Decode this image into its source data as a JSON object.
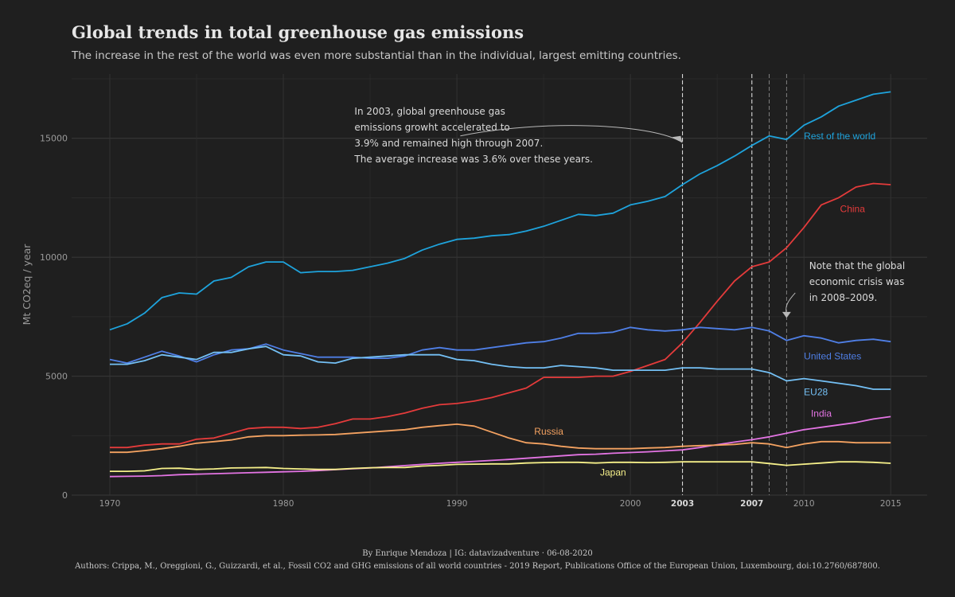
{
  "title": "Global trends in total greenhouse gas emissions",
  "subtitle": "The increase in the rest of the world was even more substantial than in the individual, largest emitting countries.",
  "caption": {
    "byline": "By Enrique Mendoza | IG: datavizadventure  ·  06-08-2020",
    "authors": "Authors: Crippa, M., Oreggioni, G., Guizzardi, et al., Fossil CO2 and GHG emissions of all world countries - 2019 Report, Publications Office of the European Union, Luxembourg, doi:10.2760/687800."
  },
  "chart_data": {
    "type": "line",
    "ylabel": "Mt CO2eq / year",
    "xlabel": "",
    "xlim": [
      1967.5,
      1017.5
    ],
    "ylim": [
      0,
      17500
    ],
    "x_ticks": [
      1970,
      1980,
      1990,
      2000,
      2003,
      2007,
      2010,
      2015
    ],
    "x_ticks_bold": [
      2003,
      2007
    ],
    "y_ticks": [
      0,
      5000,
      10000,
      15000
    ],
    "y_tick_labels": [
      "0",
      "5000",
      "10000",
      "15000"
    ],
    "grid": true,
    "vlines": [
      2003,
      2007,
      2008,
      2009
    ],
    "x": [
      1970,
      1971,
      1972,
      1973,
      1974,
      1975,
      1976,
      1977,
      1978,
      1979,
      1980,
      1981,
      1982,
      1983,
      1984,
      1985,
      1986,
      1987,
      1988,
      1989,
      1990,
      1991,
      1992,
      1993,
      1994,
      1995,
      1996,
      1997,
      1998,
      1999,
      2000,
      2001,
      2002,
      2003,
      2004,
      2005,
      2006,
      2007,
      2008,
      2009,
      2010,
      2011,
      2012,
      2013,
      2014,
      2015
    ],
    "series": [
      {
        "name": "Rest of the world",
        "color": "#1ea3dc",
        "label_year": 2010,
        "label_value": 14950,
        "label_anchor": "start",
        "values": [
          6950,
          7200,
          7650,
          8300,
          8500,
          8450,
          9000,
          9150,
          9600,
          9800,
          9800,
          9350,
          9400,
          9400,
          9450,
          9600,
          9750,
          9950,
          10300,
          10550,
          10750,
          10800,
          10900,
          10950,
          11100,
          11300,
          11550,
          11800,
          11750,
          11850,
          12200,
          12350,
          12550,
          13050,
          13500,
          13850,
          14250,
          14700,
          15100,
          14950,
          15550,
          15900,
          16350,
          16600,
          16850,
          16950
        ]
      },
      {
        "name": "China",
        "color": "#e43b3b",
        "label_year": 2012.8,
        "label_value": 11900,
        "label_anchor": "middle",
        "values": [
          2000,
          2000,
          2100,
          2150,
          2150,
          2350,
          2400,
          2600,
          2800,
          2850,
          2850,
          2800,
          2850,
          3000,
          3200,
          3200,
          3300,
          3450,
          3650,
          3800,
          3850,
          3950,
          4100,
          4300,
          4500,
          4950,
          4950,
          4950,
          5000,
          5000,
          5200,
          5450,
          5700,
          6400,
          7250,
          8150,
          9000,
          9600,
          9800,
          10400,
          11250,
          12200,
          12500,
          12950,
          13100,
          13050
        ]
      },
      {
        "name": "United States",
        "color": "#4f7fe6",
        "label_year": 2010,
        "label_value": 5700,
        "label_anchor": "start",
        "values": [
          5700,
          5550,
          5800,
          6050,
          5850,
          5600,
          5900,
          6100,
          6150,
          6350,
          6100,
          5950,
          5800,
          5800,
          5800,
          5750,
          5750,
          5850,
          6100,
          6200,
          6100,
          6100,
          6200,
          6300,
          6400,
          6450,
          6600,
          6800,
          6800,
          6850,
          7050,
          6950,
          6900,
          6950,
          7050,
          7000,
          6950,
          7050,
          6900,
          6500,
          6700,
          6600,
          6400,
          6500,
          6550,
          6450
        ]
      },
      {
        "name": "EU28",
        "color": "#74c0f5",
        "label_year": 2010,
        "label_value": 4200,
        "label_anchor": "start",
        "values": [
          5500,
          5500,
          5650,
          5900,
          5800,
          5700,
          6000,
          6000,
          6150,
          6250,
          5900,
          5850,
          5600,
          5550,
          5750,
          5800,
          5850,
          5900,
          5900,
          5900,
          5700,
          5650,
          5500,
          5400,
          5350,
          5350,
          5450,
          5400,
          5350,
          5250,
          5250,
          5250,
          5250,
          5350,
          5350,
          5300,
          5300,
          5300,
          5150,
          4800,
          4900,
          4800,
          4700,
          4600,
          4450,
          4450
        ]
      },
      {
        "name": "India",
        "color": "#e374e3",
        "label_year": 2011,
        "label_value": 3300,
        "label_anchor": "middle",
        "values": [
          780,
          790,
          800,
          820,
          860,
          880,
          900,
          920,
          940,
          960,
          980,
          1000,
          1030,
          1070,
          1110,
          1140,
          1190,
          1240,
          1290,
          1340,
          1380,
          1420,
          1460,
          1500,
          1550,
          1600,
          1650,
          1700,
          1720,
          1760,
          1790,
          1820,
          1860,
          1900,
          2000,
          2120,
          2230,
          2330,
          2450,
          2600,
          2750,
          2850,
          2950,
          3050,
          3200,
          3300
        ]
      },
      {
        "name": "Russia",
        "color": "#f4a261",
        "label_year": 1995.3,
        "label_value": 2550,
        "label_anchor": "middle",
        "values": [
          1800,
          1800,
          1870,
          1950,
          2050,
          2180,
          2250,
          2320,
          2450,
          2500,
          2500,
          2520,
          2530,
          2550,
          2600,
          2650,
          2700,
          2750,
          2850,
          2920,
          2980,
          2900,
          2650,
          2400,
          2200,
          2150,
          2050,
          1980,
          1950,
          1950,
          1950,
          1980,
          2000,
          2050,
          2080,
          2100,
          2130,
          2200,
          2150,
          2000,
          2150,
          2250,
          2250,
          2200,
          2200,
          2200
        ]
      },
      {
        "name": "Japan",
        "color": "#f6f08a",
        "label_year": 1999,
        "label_value": 820,
        "label_anchor": "middle",
        "values": [
          1000,
          1000,
          1020,
          1120,
          1130,
          1080,
          1100,
          1140,
          1150,
          1160,
          1120,
          1100,
          1080,
          1080,
          1120,
          1150,
          1160,
          1160,
          1220,
          1250,
          1290,
          1300,
          1310,
          1310,
          1350,
          1370,
          1380,
          1380,
          1350,
          1380,
          1380,
          1370,
          1380,
          1400,
          1400,
          1400,
          1400,
          1400,
          1330,
          1250,
          1300,
          1350,
          1400,
          1400,
          1380,
          1340
        ]
      }
    ],
    "annotations": [
      {
        "text_lines": [
          "In 2003, global greenhouse gas",
          "emissions growht accelerated to",
          "3.9% and remained high through 2007.",
          "The average increase was 3.6% over these years."
        ],
        "x": 1984.1,
        "y": 16000,
        "color": "#d9d9d9"
      },
      {
        "text_lines": [
          "Note that the global",
          "economic crisis was",
          "in 2008–2009."
        ],
        "x": 2010.3,
        "y": 9500,
        "color": "#d9d9d9"
      }
    ]
  }
}
